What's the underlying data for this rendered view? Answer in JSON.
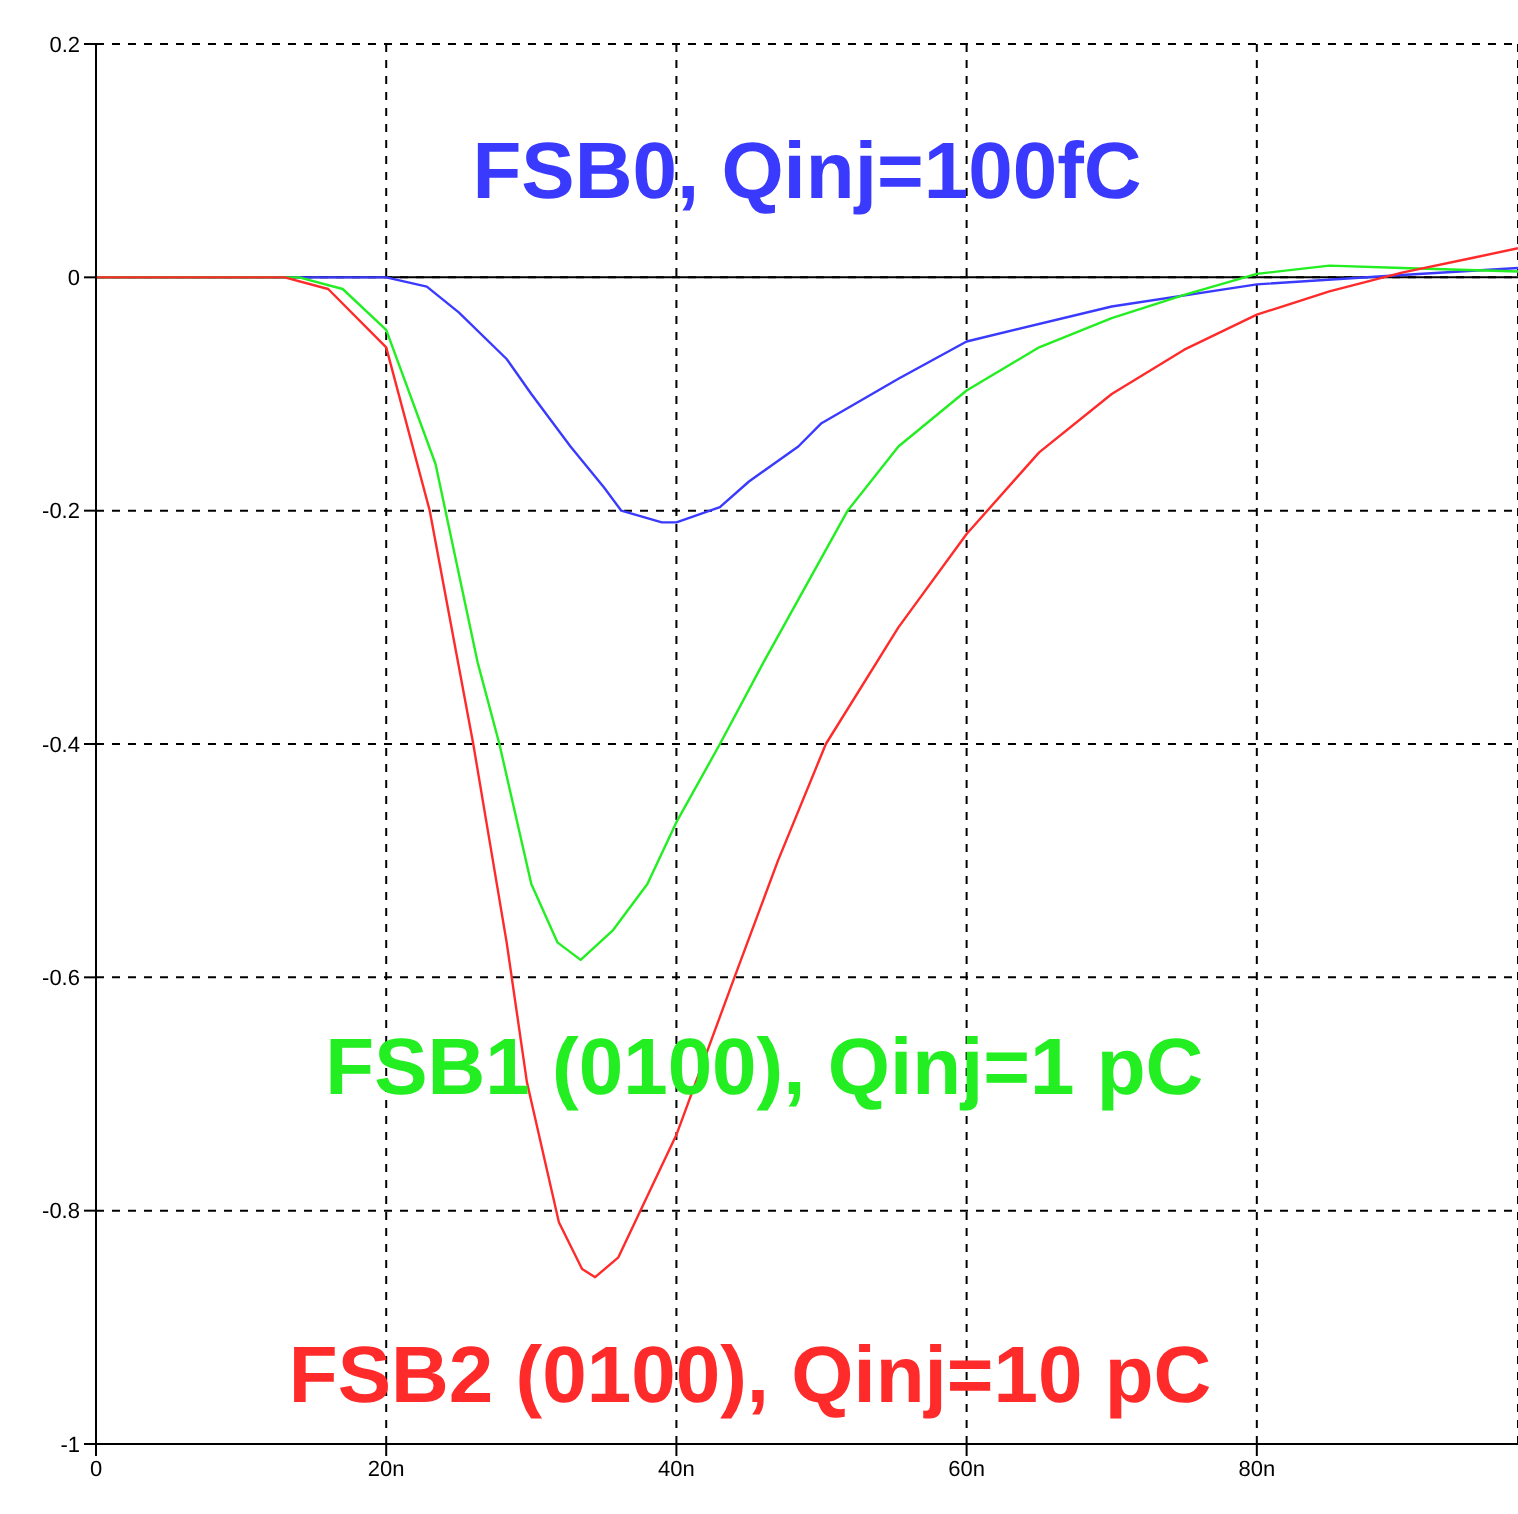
{
  "chart_data": {
    "type": "line",
    "xlim": [
      0,
      98
    ],
    "xticks": [
      0,
      {
        "value": 20,
        "label": "20n"
      },
      {
        "value": 40,
        "label": "40n"
      },
      {
        "value": 60,
        "label": "60n"
      },
      {
        "value": 80,
        "label": "80n"
      }
    ],
    "ylim": [
      -1,
      0.2
    ],
    "yticks": [
      -1,
      -0.8,
      -0.6,
      -0.4,
      -0.2,
      0,
      0.2
    ],
    "grid": true,
    "legend": false,
    "marker": "none",
    "line_style": "solid",
    "ref_lines": [
      {
        "axis": "y",
        "value": 0,
        "color": "#000000",
        "line_style": "solid"
      }
    ],
    "series": [
      {
        "name": "FSB0, Qinj=100fC",
        "color": "#3a3aff",
        "x": [
          0,
          15,
          20,
          22.8,
          25,
          28.3,
          30,
          32.7,
          35,
          36.2,
          39,
          40,
          43,
          45,
          48.4,
          50,
          55.3,
          60,
          70,
          80,
          90,
          98
        ],
        "values": [
          0,
          0,
          0,
          -0.008,
          -0.03,
          -0.07,
          -0.1,
          -0.145,
          -0.18,
          -0.2,
          -0.21,
          -0.21,
          -0.197,
          -0.175,
          -0.145,
          -0.125,
          -0.087,
          -0.055,
          -0.025,
          -0.006,
          0.002,
          0.008
        ]
      },
      {
        "name": "FSB1 (0100), Qinj=1 pC",
        "color": "#22ee22",
        "x": [
          0,
          14,
          17,
          20,
          23.4,
          26.3,
          27.8,
          30,
          31.8,
          33.4,
          35.6,
          38,
          40,
          43,
          46,
          51.8,
          55.3,
          60,
          65,
          70,
          75,
          80,
          85,
          90,
          98
        ],
        "values": [
          0,
          0,
          -0.01,
          -0.045,
          -0.16,
          -0.33,
          -0.4,
          -0.52,
          -0.57,
          -0.585,
          -0.56,
          -0.52,
          -0.467,
          -0.4,
          -0.33,
          -0.2,
          -0.145,
          -0.097,
          -0.06,
          -0.035,
          -0.015,
          0.003,
          0.01,
          0.008,
          0.005
        ]
      },
      {
        "name": "FSB2 (0100), Qinj=10 pC",
        "color": "#ff2a2a",
        "x": [
          0,
          13,
          16,
          20,
          23,
          26,
          28.3,
          29.7,
          31.9,
          33.5,
          34.4,
          36,
          40,
          44,
          47,
          50.3,
          55.3,
          60,
          65,
          70,
          75,
          80,
          85,
          90,
          95,
          98
        ],
        "values": [
          0,
          0,
          -0.01,
          -0.06,
          -0.2,
          -0.4,
          -0.57,
          -0.69,
          -0.81,
          -0.85,
          -0.857,
          -0.84,
          -0.735,
          -0.6,
          -0.5,
          -0.4,
          -0.3,
          -0.22,
          -0.15,
          -0.1,
          -0.062,
          -0.032,
          -0.012,
          0.004,
          0.017,
          0.025
        ]
      }
    ]
  }
}
